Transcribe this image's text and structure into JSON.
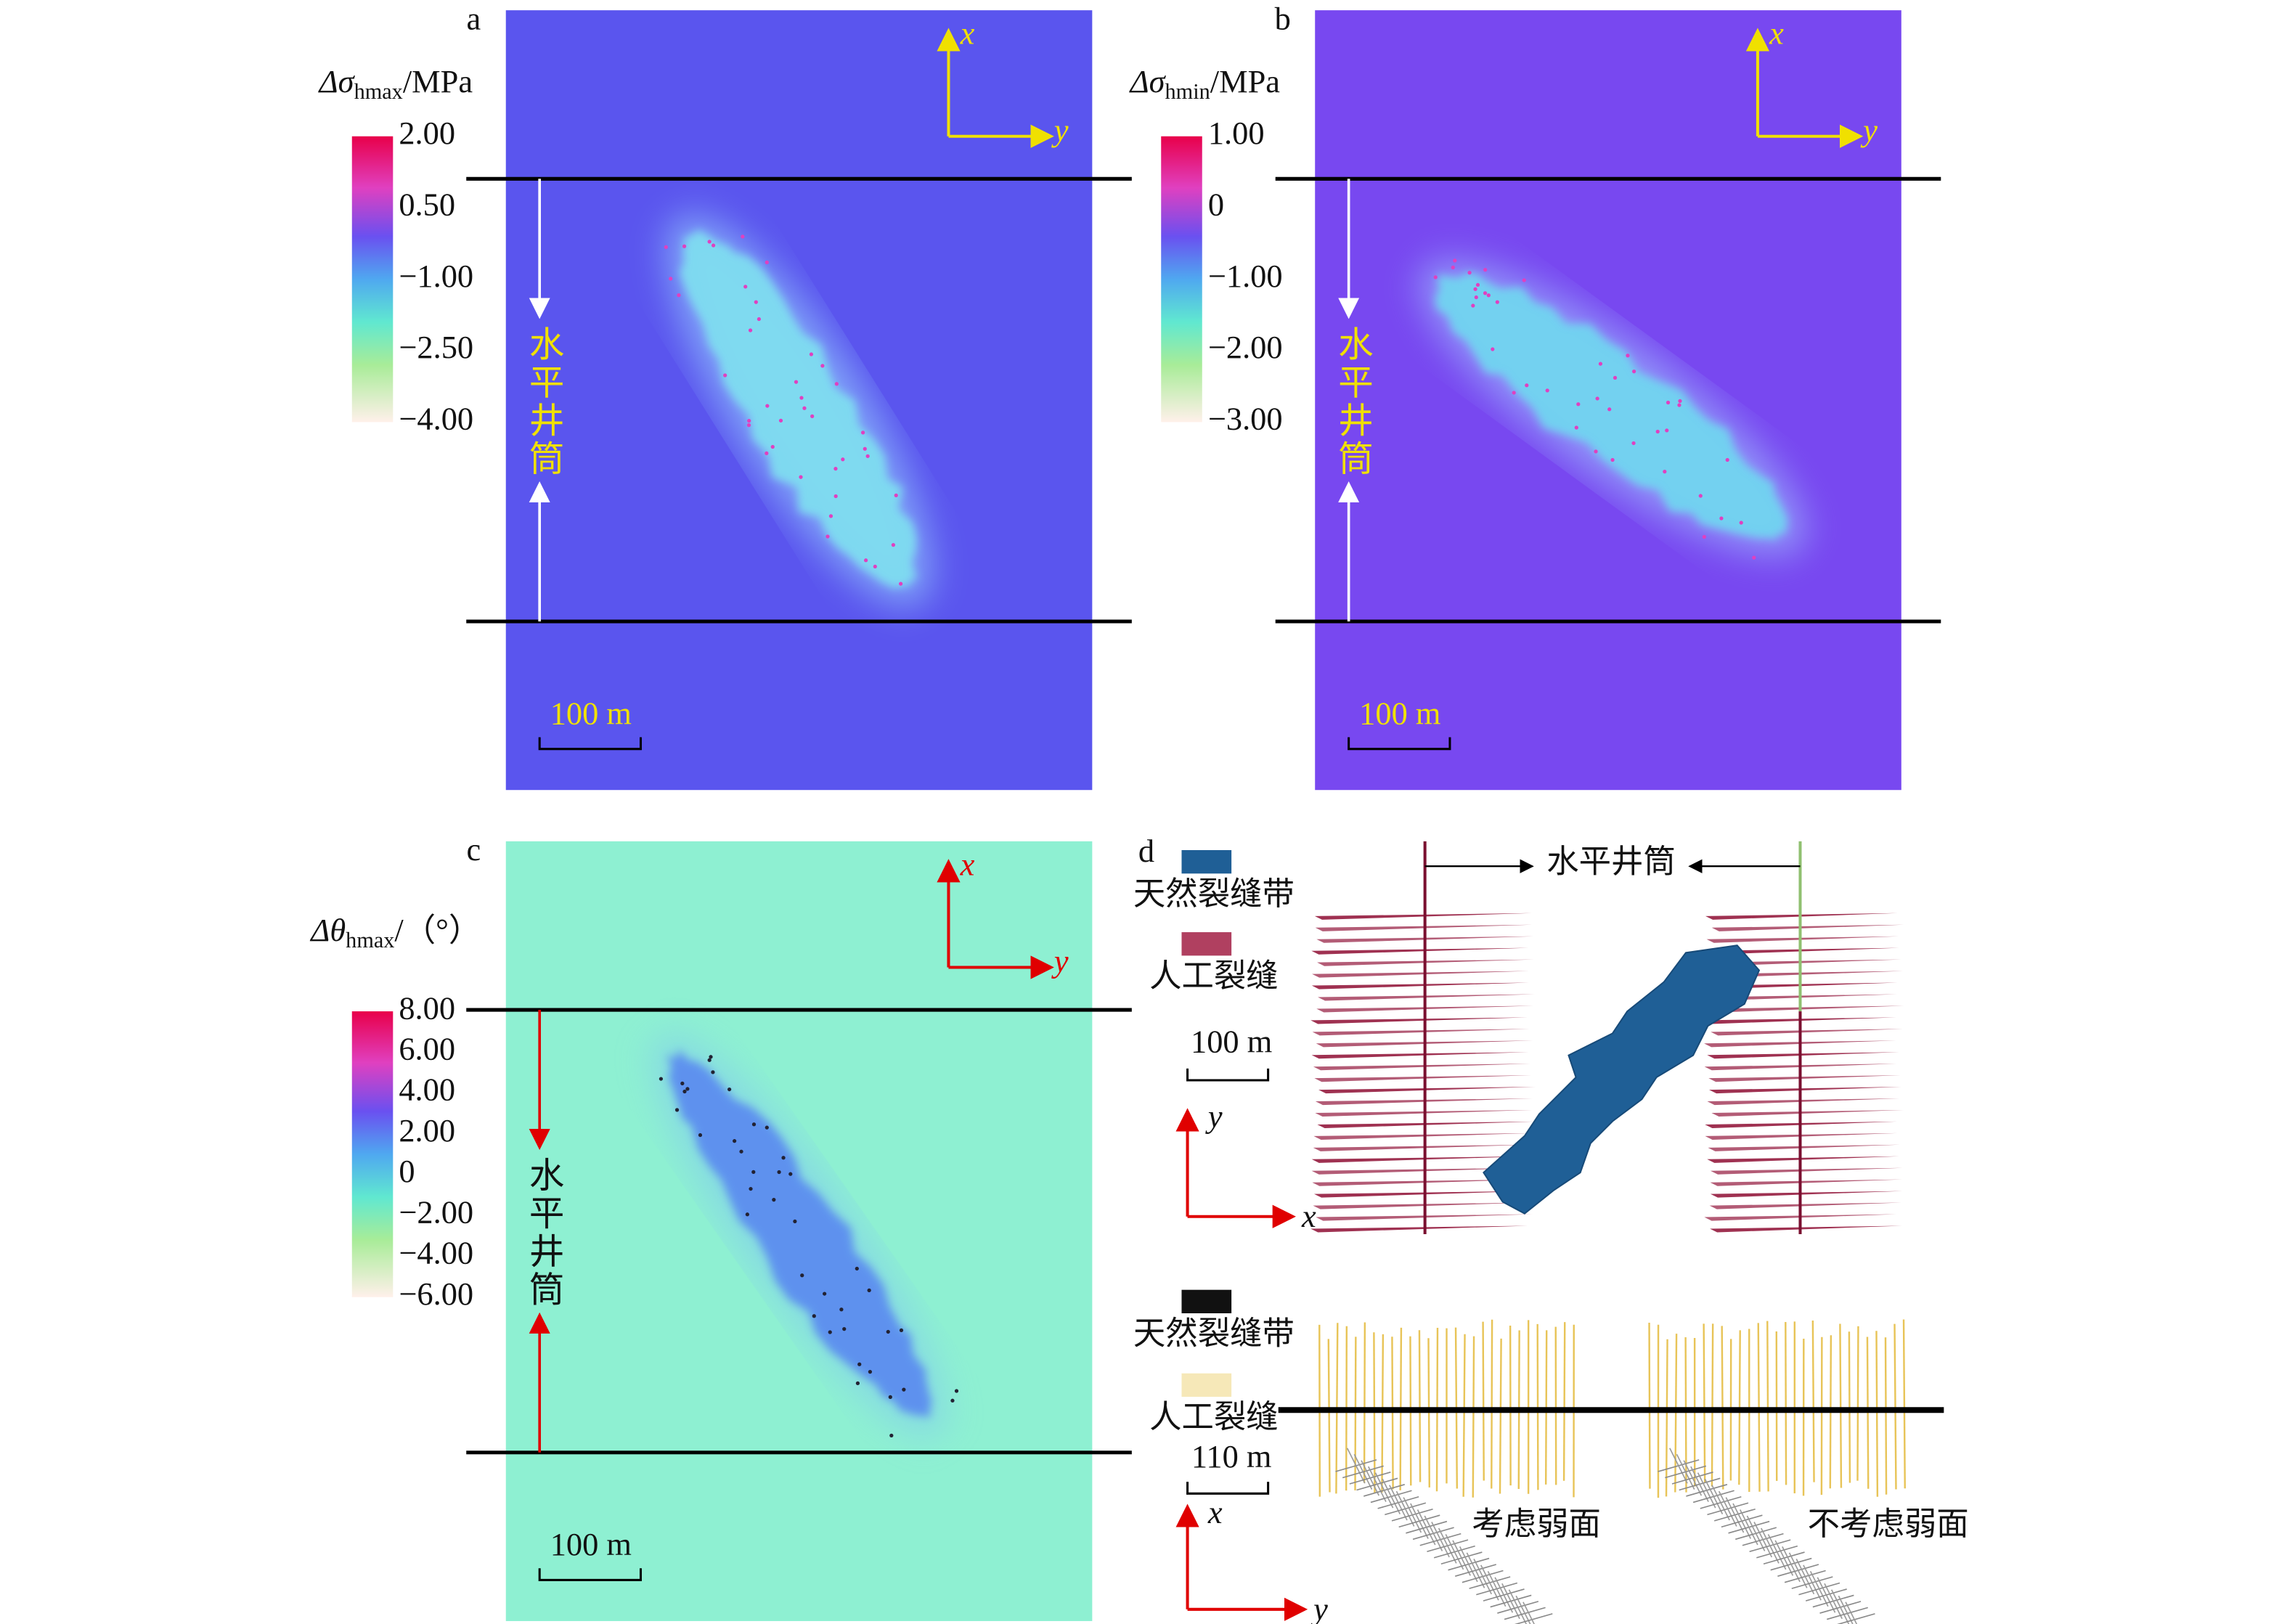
{
  "panels": [
    {
      "label": "a",
      "colorbar": {
        "symbol": "Δσ",
        "subscript": "hmax",
        "unit": "/MPa",
        "ticks": [
          "2.00",
          "0.50",
          "−1.00",
          "−2.50",
          "−4.00"
        ]
      },
      "axes": {
        "x": "x",
        "y": "y"
      },
      "wellbore": "水平井筒",
      "scale": "100 m"
    },
    {
      "label": "b",
      "colorbar": {
        "symbol": "Δσ",
        "subscript": "hmin",
        "unit": "/MPa",
        "ticks": [
          "1.00",
          "0",
          "−1.00",
          "−2.00",
          "−3.00"
        ]
      },
      "axes": {
        "x": "x",
        "y": "y"
      },
      "wellbore": "水平井筒",
      "scale": "100 m"
    },
    {
      "label": "c",
      "colorbar": {
        "symbol": "Δθ",
        "subscript": "hmax",
        "unit": "/（°）",
        "ticks": [
          "8.00",
          "6.00",
          "4.00",
          "2.00",
          "0",
          "−2.00",
          "−4.00",
          "−6.00"
        ]
      },
      "axes": {
        "x": "x",
        "y": "y"
      },
      "wellbore": "水平井筒",
      "scale": "100 m"
    },
    {
      "label": "d",
      "top": {
        "legend": [
          "天然裂缝带",
          "人工裂缝"
        ],
        "scale": "100 m",
        "wellbore": "水平井筒",
        "axes": {
          "x": "x",
          "y": "y"
        }
      },
      "bottom": {
        "legend": [
          "天然裂缝带",
          "人工裂缝"
        ],
        "scale": "110 m",
        "axes": {
          "x": "x",
          "y": "y"
        },
        "captions": [
          "考虑弱面",
          "不考虑弱面"
        ]
      }
    }
  ]
}
